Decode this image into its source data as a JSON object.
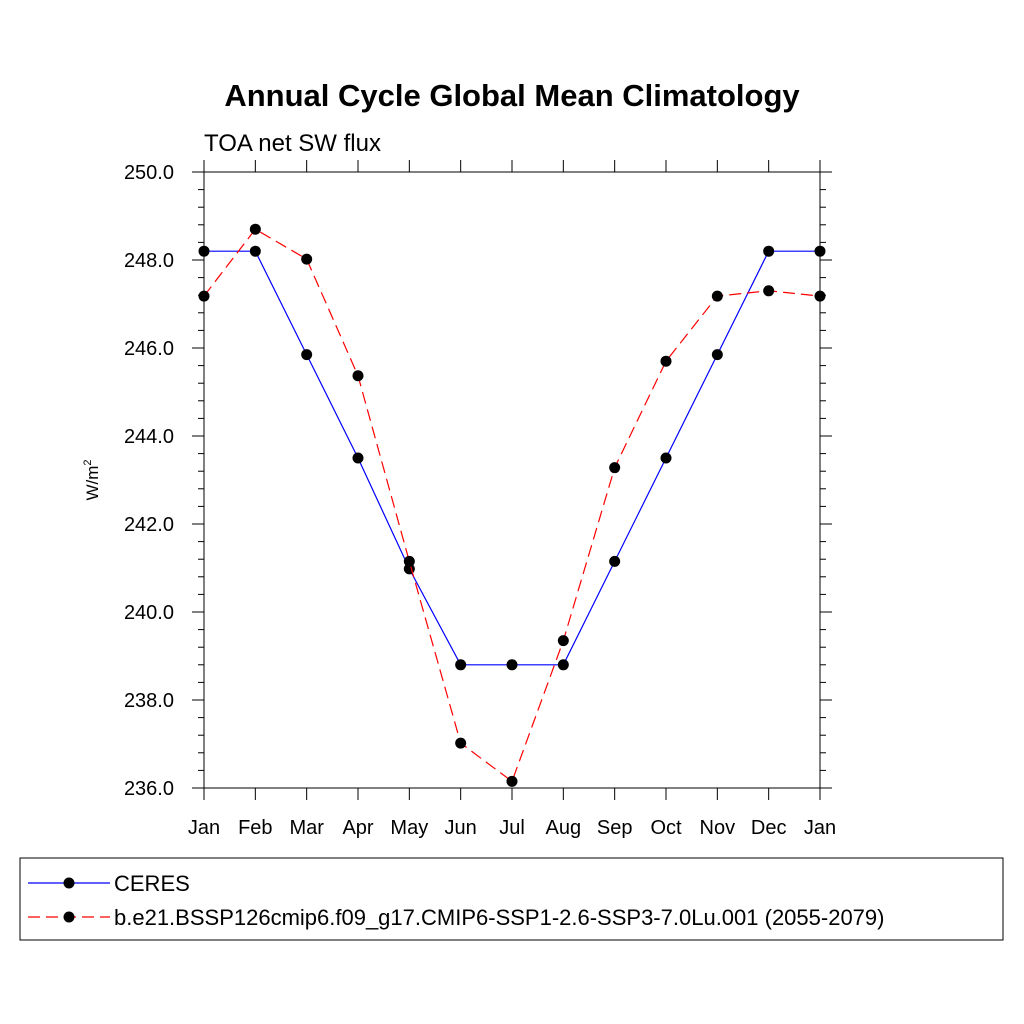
{
  "chart_data": {
    "type": "line",
    "title": "Annual Cycle Global Mean Climatology",
    "subtitle": "TOA net SW flux",
    "ylabel": "W/m",
    "ylabel_sup": "2",
    "xlabel": "",
    "categories": [
      "Jan",
      "Feb",
      "Mar",
      "Apr",
      "May",
      "Jun",
      "Jul",
      "Aug",
      "Sep",
      "Oct",
      "Nov",
      "Dec",
      "Jan"
    ],
    "ylim": [
      236.0,
      250.0
    ],
    "yticks": [
      "236.0",
      "238.0",
      "240.0",
      "242.0",
      "244.0",
      "246.0",
      "248.0",
      "250.0"
    ],
    "grid": false,
    "legend_position": "bottom",
    "series": [
      {
        "name": "CERES",
        "color": "#0000ff",
        "style": "solid",
        "values": [
          248.2,
          248.2,
          245.85,
          243.5,
          240.98,
          238.8,
          238.8,
          238.8,
          241.15,
          243.5,
          245.85,
          248.2,
          248.2
        ]
      },
      {
        "name": "b.e21.BSSP126cmip6.f09_g17.CMIP6-SSP1-2.6-SSP3-7.0Lu.001 (2055-2079)",
        "color": "#ff0000",
        "style": "dashed",
        "values": [
          247.18,
          248.7,
          248.02,
          245.37,
          241.15,
          237.02,
          236.15,
          239.35,
          243.28,
          245.7,
          247.18,
          247.3,
          247.18
        ]
      }
    ]
  }
}
